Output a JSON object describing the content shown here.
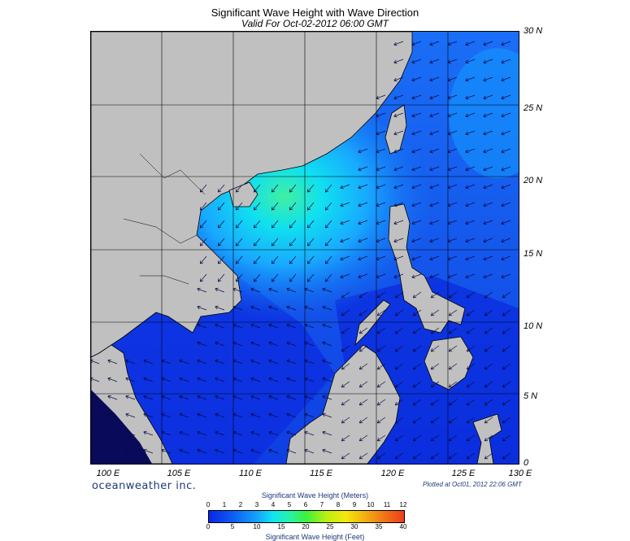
{
  "title": "Significant Wave Height with Wave Direction",
  "subtitle": "Valid For Oct-02-2012 06:00 GMT",
  "lat_labels": [
    "30 N",
    "25 N",
    "20 N",
    "15 N",
    "10 N",
    "5 N",
    "0"
  ],
  "lon_labels": [
    "100 E",
    "105 E",
    "110 E",
    "115 E",
    "120 E",
    "125 E",
    "130 E"
  ],
  "brand": "oceanweather inc.",
  "plotted": "Plotted at Oct01, 2012 22:06 GMT",
  "colorbar": {
    "title_meters": "Significant Wave Height (Meters)",
    "title_feet": "Significant Wave Height (Feet)",
    "meters_ticks": [
      "0",
      "1",
      "2",
      "3",
      "4",
      "5",
      "6",
      "7",
      "8",
      "9",
      "10",
      "11",
      "12"
    ],
    "feet_ticks": [
      "0",
      "5",
      "10",
      "15",
      "20",
      "25",
      "30",
      "35",
      "40"
    ]
  },
  "colors": {
    "land": "#c0c0c0",
    "deep": "#0a1fd8",
    "mid": "#1466f0",
    "high": "#10e0f0",
    "peak": "#38f0a0"
  }
}
